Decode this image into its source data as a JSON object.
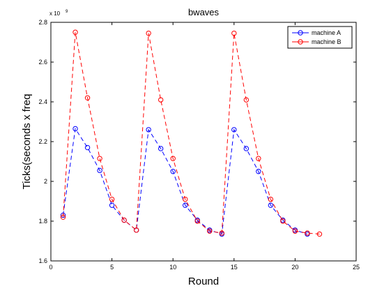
{
  "chart_data": {
    "type": "line",
    "title": "bwaves",
    "xlabel": "Round",
    "ylabel": "Ticks(seconds x freq",
    "y_exponent_label": "x 10",
    "y_exponent_power": "9",
    "xlim": [
      0,
      25
    ],
    "ylim": [
      1.6,
      2.8
    ],
    "xticks": [
      0,
      5,
      10,
      15,
      20,
      25
    ],
    "yticks": [
      1.6,
      1.8,
      2,
      2.2,
      2.4,
      2.6,
      2.8
    ],
    "ytick_labels": [
      "1.6",
      "1.8",
      "2",
      "2.2",
      "2.4",
      "2.6",
      "2.8"
    ],
    "grid": false,
    "legend_position": "top-right",
    "series": [
      {
        "name": "machine A",
        "color": "#0000ff",
        "line_style": "dashed",
        "marker": "circle",
        "x": [
          1,
          2,
          3,
          4,
          5,
          6,
          7,
          8,
          9,
          10,
          11,
          12,
          13,
          14,
          15,
          16,
          17,
          18,
          19,
          20,
          21
        ],
        "y": [
          1.83,
          2.265,
          2.17,
          2.055,
          1.88,
          1.805,
          1.755,
          2.26,
          2.165,
          2.05,
          1.88,
          1.805,
          1.755,
          1.735,
          2.26,
          2.165,
          2.05,
          1.88,
          1.805,
          1.755,
          1.735
        ]
      },
      {
        "name": "machine B",
        "color": "#ff0000",
        "line_style": "dashed",
        "marker": "circle",
        "x": [
          1,
          2,
          3,
          4,
          5,
          6,
          7,
          8,
          9,
          10,
          11,
          12,
          13,
          14,
          15,
          16,
          17,
          18,
          19,
          20,
          21,
          22
        ],
        "y": [
          1.82,
          2.75,
          2.42,
          2.115,
          1.91,
          1.805,
          1.755,
          2.745,
          2.41,
          2.115,
          1.91,
          1.8,
          1.75,
          1.74,
          2.745,
          2.41,
          2.115,
          1.91,
          1.8,
          1.75,
          1.74,
          1.735
        ]
      }
    ]
  }
}
